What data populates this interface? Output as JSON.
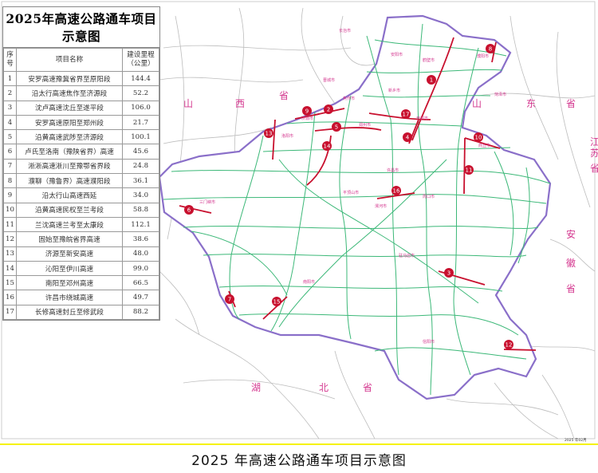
{
  "title": "2025年高速公路通车项目示意图",
  "caption": "2025 年高速公路通车项目示意图",
  "date_stamp": "2025 年02月",
  "table": {
    "headers": {
      "no": "序号",
      "name": "项目名称",
      "length": "建设里程（公里）"
    },
    "rows": [
      {
        "no": "1",
        "name": "安罗高速豫冀省界至原阳段",
        "length": "144.4"
      },
      {
        "no": "2",
        "name": "沿太行高速焦作至济源段",
        "length": "52.2"
      },
      {
        "no": "3",
        "name": "沈卢高速沈丘至遂平段",
        "length": "106.0"
      },
      {
        "no": "4",
        "name": "安罗高速原阳至郑州段",
        "length": "21.7"
      },
      {
        "no": "5",
        "name": "沿黄高速武陟至济源段",
        "length": "100.1"
      },
      {
        "no": "6",
        "name": "卢氏至洛南（豫陕省界）高速",
        "length": "45.6"
      },
      {
        "no": "7",
        "name": "淅淅高速淅川至豫鄂省界段",
        "length": "24.8"
      },
      {
        "no": "8",
        "name": "濮聊（豫鲁界）高速濮阳段",
        "length": "36.1"
      },
      {
        "no": "9",
        "name": "沿太行山高速西延",
        "length": "34.0"
      },
      {
        "no": "10",
        "name": "沿黄高速民权至兰考段",
        "length": "58.8"
      },
      {
        "no": "11",
        "name": "兰沈高速兰考至太康段",
        "length": "112.1"
      },
      {
        "no": "12",
        "name": "固始至豫皖省界高速",
        "length": "38.6"
      },
      {
        "no": "13",
        "name": "济源至新安高速",
        "length": "48.0"
      },
      {
        "no": "14",
        "name": "沁阳至伊川高速",
        "length": "99.0"
      },
      {
        "no": "15",
        "name": "南阳至邓州高速",
        "length": "66.5"
      },
      {
        "no": "16",
        "name": "许昌市绕城高速",
        "length": "49.7"
      },
      {
        "no": "17",
        "name": "长修高速封丘至修武段",
        "length": "88.2"
      }
    ]
  },
  "provinces": [
    {
      "chars": [
        "山",
        "西",
        "省"
      ]
    },
    {
      "chars": [
        "山",
        "东",
        "省"
      ]
    },
    {
      "chars": [
        "江",
        "苏",
        "省"
      ]
    },
    {
      "chars": [
        "安",
        "徽",
        "省"
      ]
    },
    {
      "chars": [
        "湖",
        "北",
        "省"
      ]
    }
  ],
  "cities": [
    "安阳市",
    "鹤壁市",
    "濮阳市",
    "新乡市",
    "焦作市",
    "济源市",
    "洛阳市",
    "郑州市",
    "开封市",
    "商丘市",
    "许昌市",
    "平顶山市",
    "漯河市",
    "周口市",
    "三门峡市",
    "南阳市",
    "驻马店市",
    "信阳市",
    "长治市",
    "晋城市",
    "菏泽市"
  ],
  "colors": {
    "project": "#c8102e",
    "expressway": "#3cb878",
    "border": "#8a6fc9",
    "city": "#d4378f",
    "other_road": "#b5b5b5"
  }
}
